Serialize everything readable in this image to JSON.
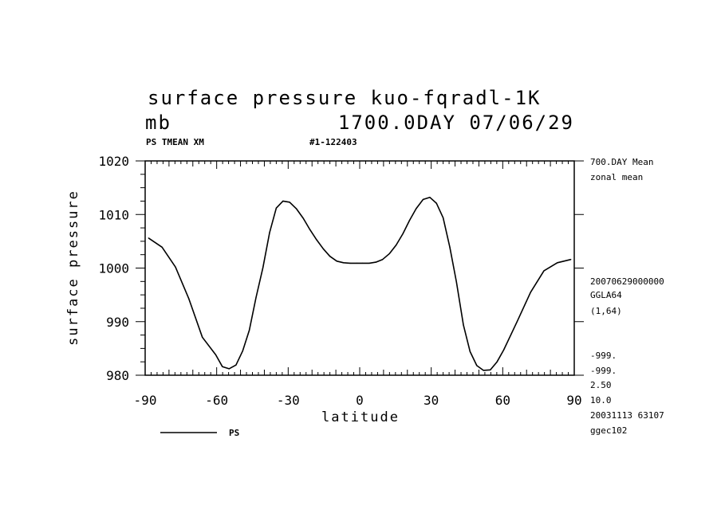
{
  "header": {
    "title": "surface pressure kuo-fqradl-1K",
    "units": "mb",
    "run_info": "1700.0DAY 07/06/29",
    "field_id": "PS TMEAN XM",
    "experiment_id": "#1-122403"
  },
  "side_notes": {
    "mean_label": "700.DAY Mean",
    "zonal_label": "zonal mean",
    "date_code": "20070629000000",
    "grid_name": "GGLA64",
    "grid_index": "(1,64)",
    "missing_1": "-999.",
    "missing_2": "-999.",
    "interval_1": "2.50",
    "interval_2": "10.0",
    "build_info": "20031113  63107",
    "machine": "ggec102"
  },
  "legend": {
    "label": "PS"
  },
  "chart_data": {
    "type": "line",
    "xlabel": "latitude",
    "ylabel": "surface pressure",
    "xlim": [
      -90,
      90
    ],
    "ylim": [
      980,
      1020
    ],
    "xticks": [
      -90,
      -60,
      -30,
      0,
      30,
      60,
      90
    ],
    "yticks": [
      980,
      990,
      1000,
      1010,
      1020
    ],
    "grid": false,
    "series": [
      {
        "name": "PS",
        "x": [
          -88.6,
          -82.9,
          -77.3,
          -71.7,
          -66.0,
          -60.4,
          -57.6,
          -54.8,
          -51.9,
          -49.1,
          -46.3,
          -43.5,
          -40.6,
          -37.8,
          -35.0,
          -32.2,
          -29.4,
          -26.6,
          -23.7,
          -20.9,
          -18.1,
          -15.3,
          -12.5,
          -9.6,
          -6.8,
          -4.0,
          -1.2,
          1.2,
          4.0,
          6.8,
          9.6,
          12.5,
          15.3,
          18.1,
          20.9,
          23.7,
          26.6,
          29.4,
          32.2,
          35.0,
          37.8,
          40.6,
          43.5,
          46.3,
          49.1,
          51.9,
          54.8,
          57.6,
          60.4,
          66.0,
          71.7,
          77.3,
          82.9,
          88.6
        ],
        "y": [
          1005.6,
          1003.9,
          1000.2,
          994.3,
          987.1,
          983.8,
          981.6,
          981.2,
          981.9,
          984.5,
          988.4,
          994.5,
          1000.1,
          1006.6,
          1011.2,
          1012.5,
          1012.3,
          1011.1,
          1009.3,
          1007.2,
          1005.3,
          1003.6,
          1002.2,
          1001.3,
          1001.0,
          1000.9,
          1000.9,
          1000.9,
          1000.9,
          1001.1,
          1001.6,
          1002.7,
          1004.3,
          1006.4,
          1008.9,
          1011.1,
          1012.8,
          1013.2,
          1012.1,
          1009.4,
          1003.9,
          997.4,
          989.4,
          984.4,
          981.8,
          980.9,
          981.0,
          982.5,
          984.7,
          990.0,
          995.5,
          999.5,
          1001.0,
          1001.6
        ]
      }
    ]
  }
}
